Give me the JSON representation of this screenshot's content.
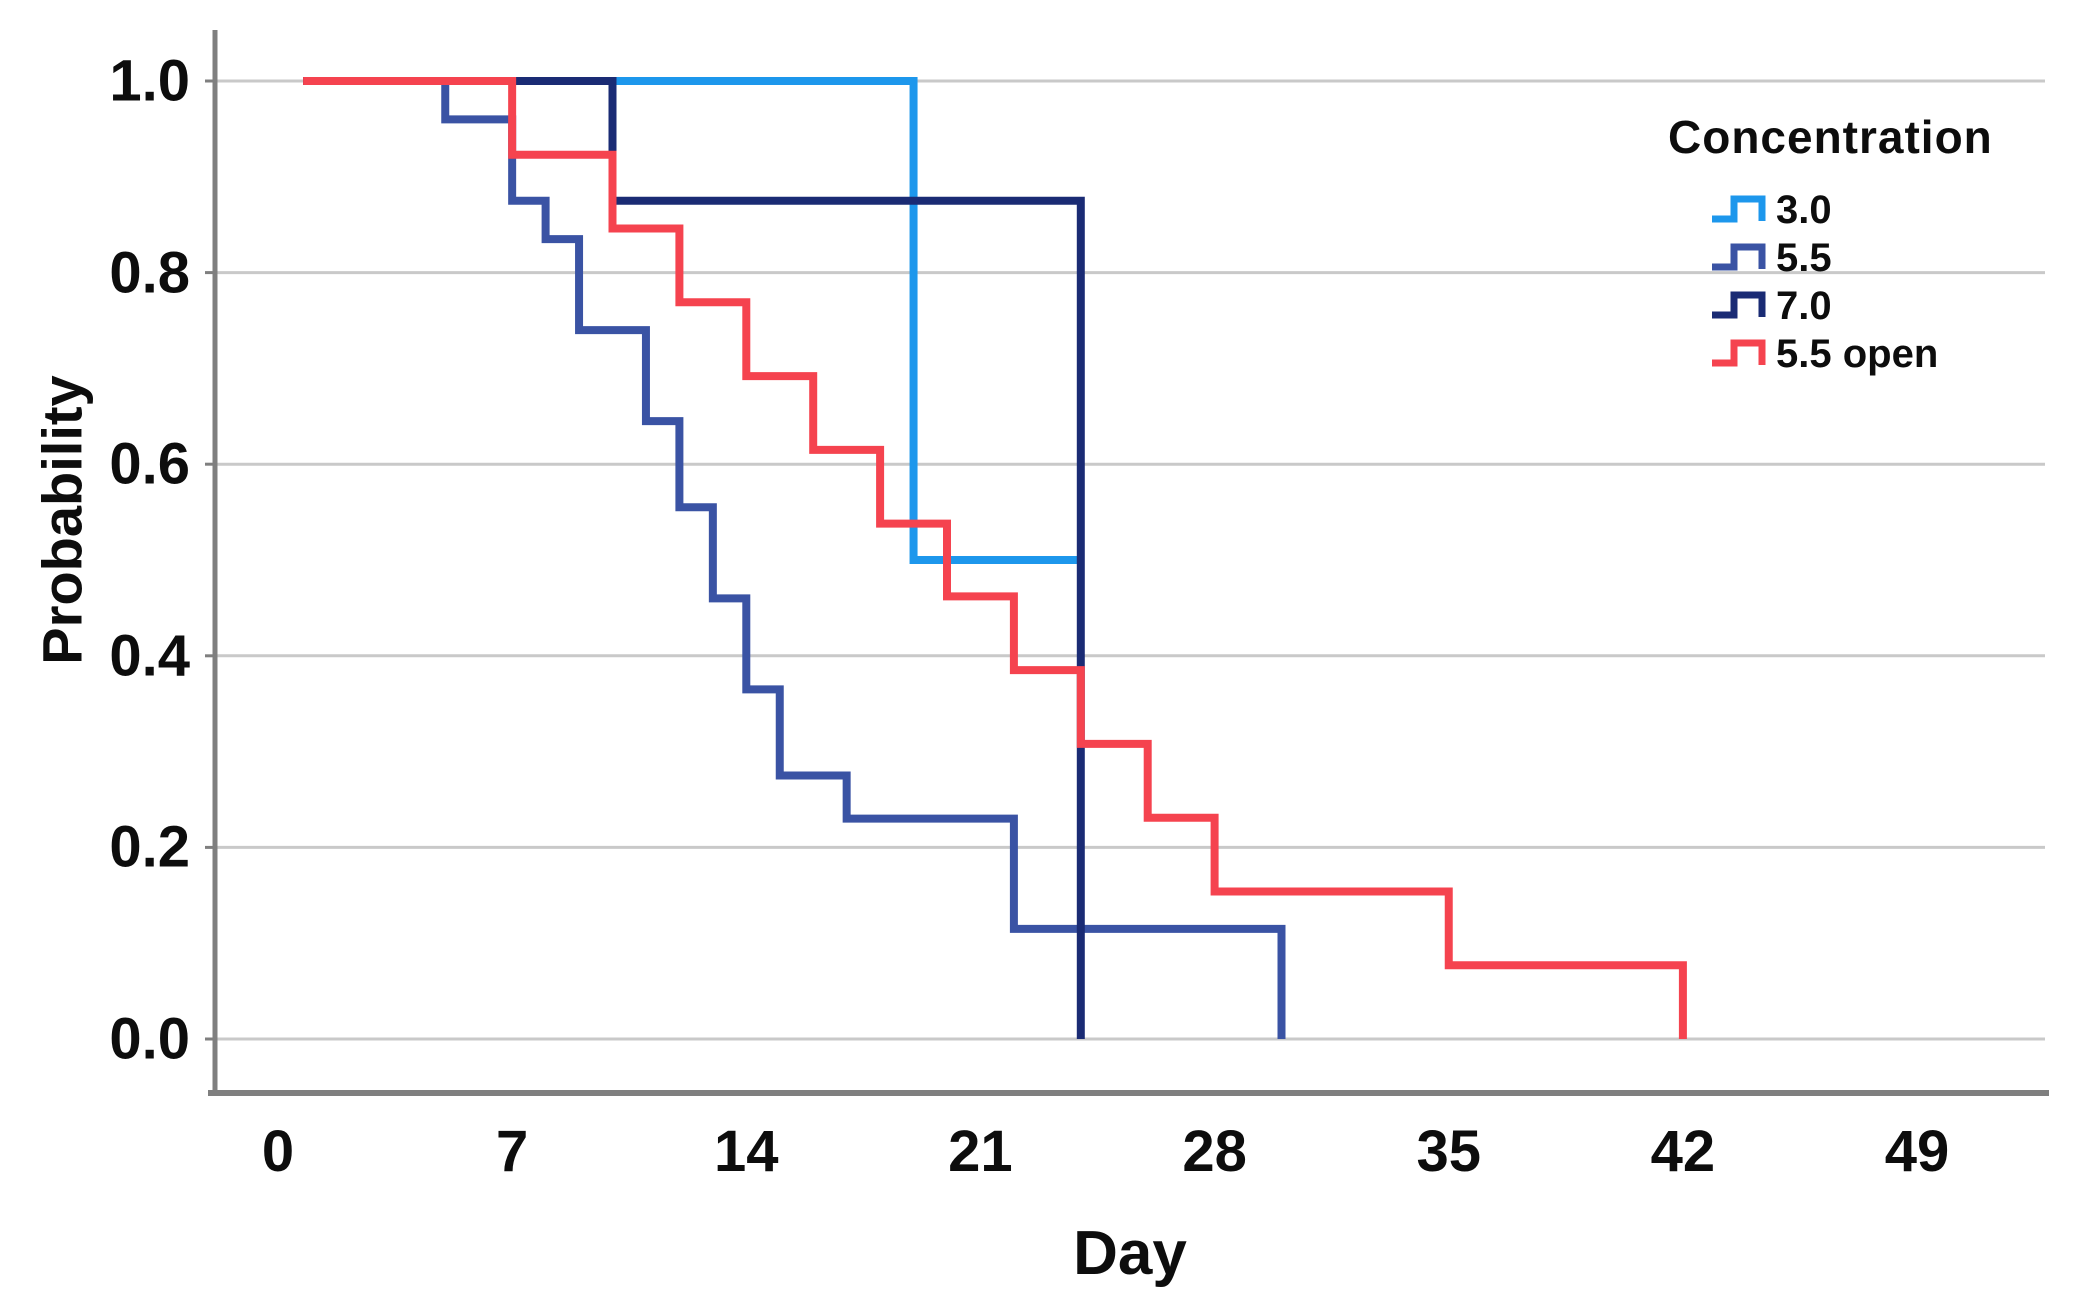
{
  "chart_data": {
    "type": "line",
    "subtype": "kaplan-meier-step",
    "title": "",
    "xlabel": "Day",
    "ylabel": "Probability",
    "legend_title": "Concentration",
    "legend_position": "upper-right",
    "grid": "horizontal",
    "xlim": [
      -1.9,
      52.8
    ],
    "ylim": [
      -0.056,
      1.053
    ],
    "x_ticks": [
      {
        "label": "0",
        "value": 0
      },
      {
        "label": "7",
        "value": 7
      },
      {
        "label": "14",
        "value": 14
      },
      {
        "label": "21",
        "value": 21
      },
      {
        "label": "28",
        "value": 28
      },
      {
        "label": "35",
        "value": 35
      },
      {
        "label": "42",
        "value": 42
      },
      {
        "label": "49",
        "value": 49
      }
    ],
    "y_ticks": [
      {
        "label": "1.0",
        "value": 1.0
      },
      {
        "label": "0.8",
        "value": 0.8
      },
      {
        "label": "0.6",
        "value": 0.6
      },
      {
        "label": "0.4",
        "value": 0.4
      },
      {
        "label": "0.2",
        "value": 0.2
      },
      {
        "label": "0.0",
        "value": 0.0
      }
    ],
    "series": [
      {
        "name": "3.0",
        "color": "#1d97ec",
        "points": [
          [
            0.75,
            1.0
          ],
          [
            19,
            0.5
          ],
          [
            24,
            0.5
          ]
        ]
      },
      {
        "name": "5.5",
        "color": "#3a53a4",
        "points": [
          [
            0.75,
            1.0
          ],
          [
            5,
            0.96
          ],
          [
            7,
            0.875
          ],
          [
            8,
            0.835
          ],
          [
            9,
            0.74
          ],
          [
            11,
            0.645
          ],
          [
            12,
            0.555
          ],
          [
            13,
            0.46
          ],
          [
            14,
            0.365
          ],
          [
            15,
            0.275
          ],
          [
            17,
            0.23
          ],
          [
            22,
            0.115
          ],
          [
            30,
            0.0
          ]
        ]
      },
      {
        "name": "7.0",
        "color": "#1a2b74",
        "points": [
          [
            0.75,
            1.0
          ],
          [
            10,
            0.875
          ],
          [
            24,
            0.0
          ]
        ]
      },
      {
        "name": "5.5 open",
        "color": "#f5434f",
        "points": [
          [
            0.75,
            1.0
          ],
          [
            7,
            0.923
          ],
          [
            10,
            0.846
          ],
          [
            12,
            0.769
          ],
          [
            14,
            0.692
          ],
          [
            16,
            0.615
          ],
          [
            18,
            0.538
          ],
          [
            20,
            0.462
          ],
          [
            22,
            0.385
          ],
          [
            24,
            0.308
          ],
          [
            26,
            0.231
          ],
          [
            28,
            0.154
          ],
          [
            35,
            0.077
          ],
          [
            42,
            0.0
          ]
        ]
      }
    ],
    "colors": {
      "gridline": "#c9c9c9",
      "axis": "#7f7f7f",
      "text": "#0d0d0d",
      "background": "#ffffff"
    }
  }
}
